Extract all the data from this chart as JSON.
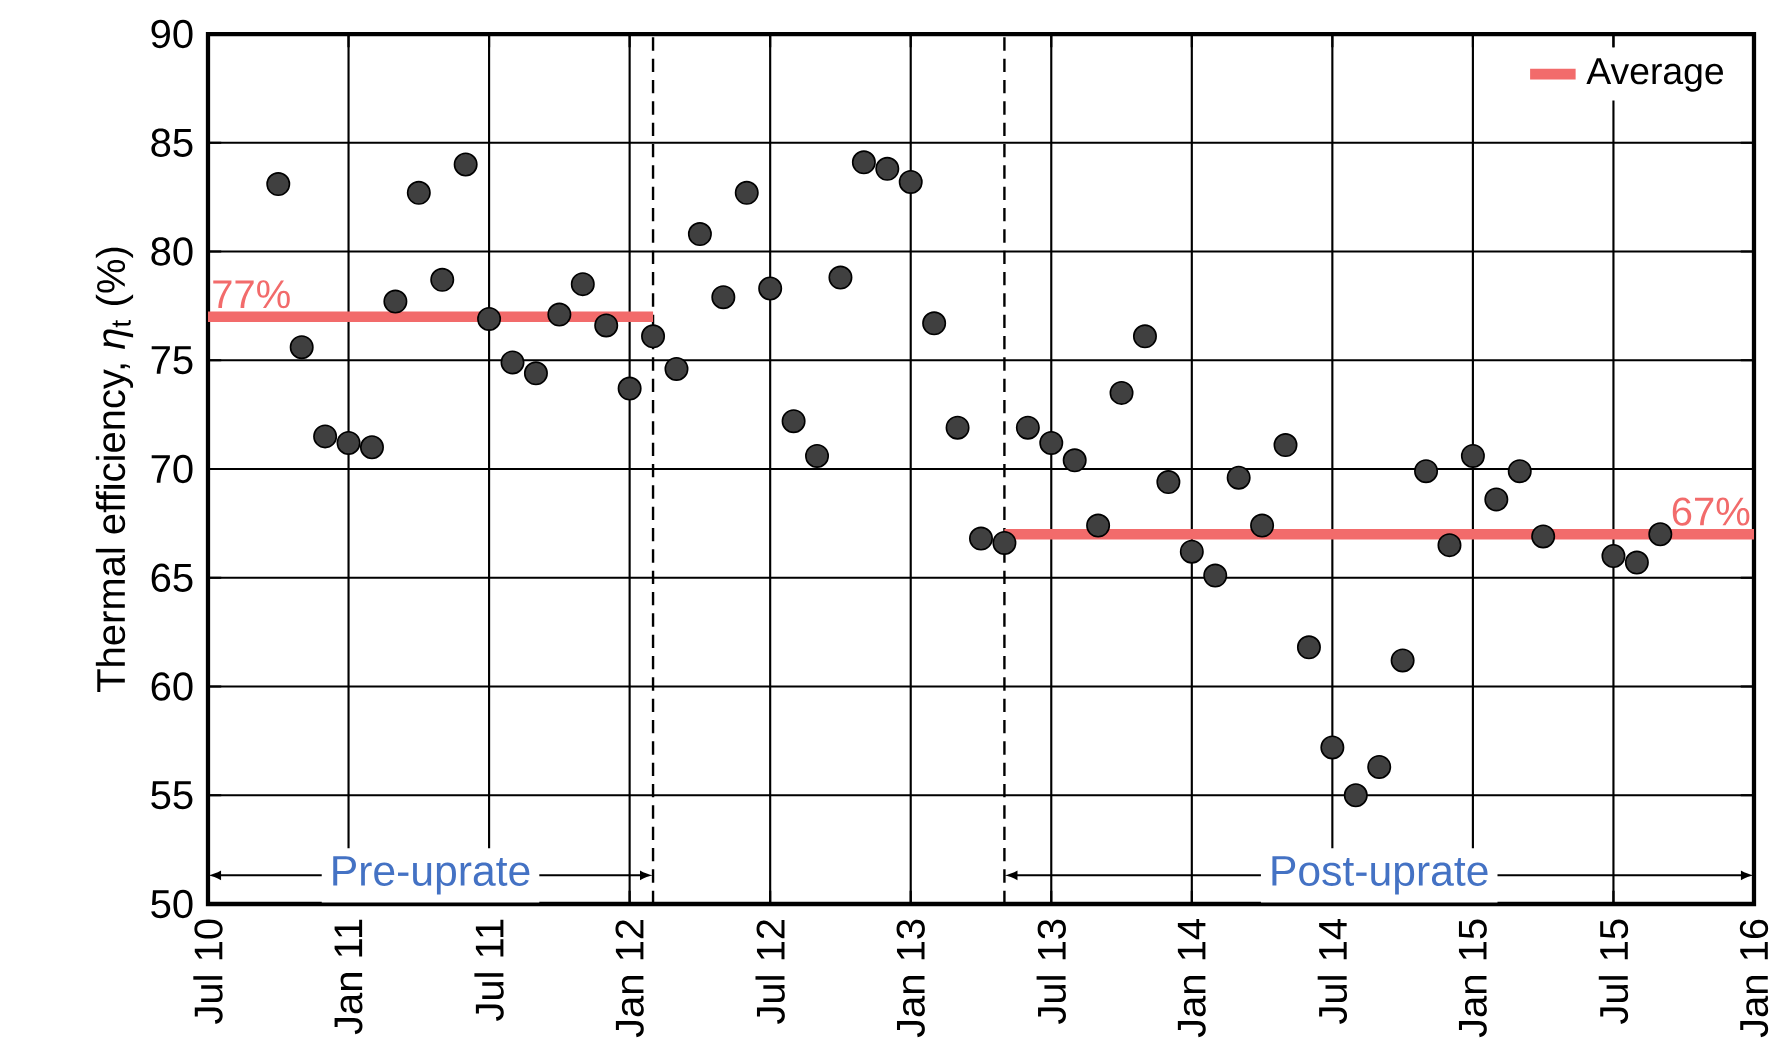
{
  "chart_data": {
    "type": "scatter",
    "ylabel": "Thermal efficiency, *η*$_{t}$ (%)",
    "xlim": [
      "2010-07",
      "2016-01"
    ],
    "xticks": [
      {
        "value": "2010-07",
        "label": "Jul 10"
      },
      {
        "value": "2011-01",
        "label": "Jan 11"
      },
      {
        "value": "2011-07",
        "label": "Jul 11"
      },
      {
        "value": "2012-01",
        "label": "Jan 12"
      },
      {
        "value": "2012-07",
        "label": "Jul 12"
      },
      {
        "value": "2013-01",
        "label": "Jan 13"
      },
      {
        "value": "2013-07",
        "label": "Jul 13"
      },
      {
        "value": "2014-01",
        "label": "Jan 14"
      },
      {
        "value": "2014-07",
        "label": "Jul 14"
      },
      {
        "value": "2015-01",
        "label": "Jan 15"
      },
      {
        "value": "2015-07",
        "label": "Jul 15"
      },
      {
        "value": "2016-01",
        "label": "Jan 16"
      }
    ],
    "ylim": [
      50,
      90
    ],
    "yticks": [
      50,
      55,
      60,
      65,
      70,
      75,
      80,
      85,
      90
    ],
    "grid": true,
    "legend": "top right",
    "marker": "circle",
    "series": [
      {
        "color": "#404040",
        "x": [
          "2010-10",
          "2010-11",
          "2010-12",
          "2011-01",
          "2011-02",
          "2011-03",
          "2011-04",
          "2011-05",
          "2011-06",
          "2011-07",
          "2011-08",
          "2011-09",
          "2011-10",
          "2011-11",
          "2011-12",
          "2012-01",
          "2012-02",
          "2012-03",
          "2012-04",
          "2012-05",
          "2012-06",
          "2012-07",
          "2012-08",
          "2012-09",
          "2012-10",
          "2012-11",
          "2012-12",
          "2013-01",
          "2013-02",
          "2013-03",
          "2013-04",
          "2013-05",
          "2013-06",
          "2013-07",
          "2013-08",
          "2013-09",
          "2013-10",
          "2013-11",
          "2013-12",
          "2014-01",
          "2014-02",
          "2014-03",
          "2014-04",
          "2014-05",
          "2014-06",
          "2014-07",
          "2014-08",
          "2014-09",
          "2014-10",
          "2014-11",
          "2014-12",
          "2015-01",
          "2015-02",
          "2015-03",
          "2015-04",
          "2015-07",
          "2015-08",
          "2015-09"
        ],
        "values": [
          83.1,
          75.6,
          71.5,
          71.2,
          71.0,
          77.7,
          82.7,
          78.7,
          84.0,
          76.9,
          74.9,
          74.4,
          77.1,
          78.5,
          76.6,
          73.7,
          76.1,
          74.6,
          80.8,
          77.9,
          82.7,
          78.3,
          72.2,
          70.6,
          78.8,
          84.1,
          83.8,
          83.2,
          76.7,
          71.9,
          66.8,
          66.6,
          71.9,
          71.2,
          70.4,
          67.4,
          73.5,
          76.1,
          69.4,
          66.2,
          65.1,
          69.6,
          67.4,
          71.1,
          61.8,
          57.2,
          55.0,
          56.3,
          61.2,
          69.9,
          66.5,
          70.6,
          68.6,
          69.9,
          66.9,
          66.0,
          65.7,
          67.0
        ]
      },
      {
        "type": "line",
        "name": "Average",
        "color": "#f26b6b",
        "marker": "none",
        "x": [
          "2010-07",
          "2012-02",
          "2012-09",
          "2013-05",
          "2016-01"
        ],
        "values": [
          77,
          77,
          null,
          67,
          67
        ]
      }
    ],
    "ref_lines": [
      {
        "axis": "x",
        "value": "2012-02",
        "line_style": "dashed"
      },
      {
        "axis": "x",
        "value": "2013-05",
        "line_style": "dashed"
      }
    ],
    "annotations": [
      {
        "text": "77%",
        "x": "2010-07",
        "y": 77
      },
      {
        "text": "67%",
        "x": "2016-01",
        "y": 67
      },
      "Pre-uprate",
      "Post-uprate"
    ]
  }
}
